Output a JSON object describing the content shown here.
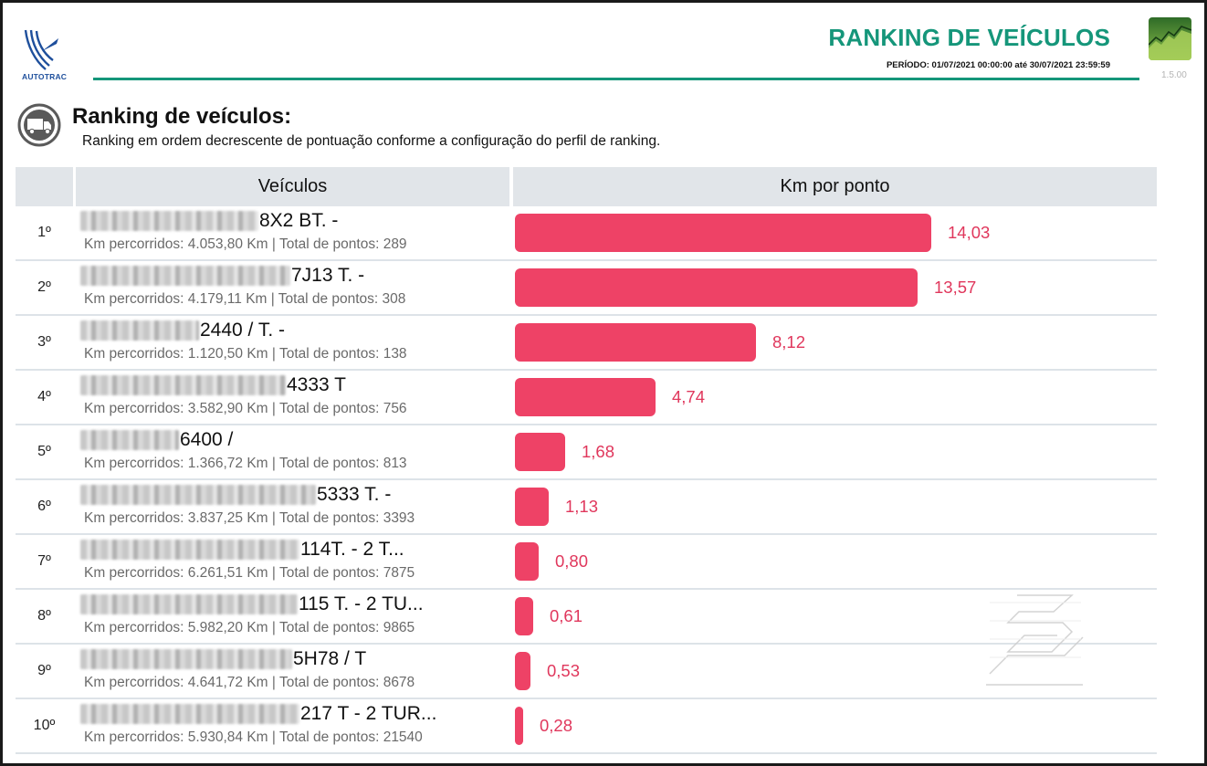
{
  "header": {
    "logo_text": "AUTOTRAC",
    "title": "RANKING DE VEÍCULOS",
    "period": "PERÍODO: 01/07/2021 00:00:00 até 30/07/2021 23:59:59",
    "version": "1.5.00",
    "logo_icon": "autotrac-logo",
    "app_icon": "chart-app-icon",
    "accent_color": "#15967a"
  },
  "section": {
    "icon": "truck-icon",
    "title": "Ranking de veículos:",
    "subtitle": "Ranking em ordem decrescente de pontuação conforme a configuração do perfil de ranking."
  },
  "table": {
    "col_rank": "",
    "col_vehicles": "Veículos",
    "col_km_per_point": "Km por ponto",
    "bar_color": "#ee4266",
    "max_value": 14.03,
    "rows": [
      {
        "rank": "1º",
        "name": "8X2 BT. -",
        "info": "Km percorridos: 4.053,80 Km | Total de pontos: 289",
        "value": 14.03,
        "value_label": "14,03"
      },
      {
        "rank": "2º",
        "name": "7J13 T. -",
        "info": "Km percorridos: 4.179,11 Km | Total de pontos: 308",
        "value": 13.57,
        "value_label": "13,57"
      },
      {
        "rank": "3º",
        "name": "2440 / T. -",
        "info": "Km percorridos: 1.120,50 Km | Total de pontos: 138",
        "value": 8.12,
        "value_label": "8,12"
      },
      {
        "rank": "4º",
        "name": "4333 T",
        "info": "Km percorridos: 3.582,90 Km | Total de pontos: 756",
        "value": 4.74,
        "value_label": "4,74"
      },
      {
        "rank": "5º",
        "name": "6400 /",
        "info": "Km percorridos: 1.366,72 Km | Total de pontos: 813",
        "value": 1.68,
        "value_label": "1,68"
      },
      {
        "rank": "6º",
        "name": "5333 T. -",
        "info": "Km percorridos: 3.837,25 Km | Total de pontos: 3393",
        "value": 1.13,
        "value_label": "1,13"
      },
      {
        "rank": "7º",
        "name": "114T. - 2 T...",
        "info": "Km percorridos: 6.261,51 Km | Total de pontos: 7875",
        "value": 0.8,
        "value_label": "0,80"
      },
      {
        "rank": "8º",
        "name": "115 T. - 2 TU...",
        "info": "Km percorridos: 5.982,20 Km | Total de pontos: 9865",
        "value": 0.61,
        "value_label": "0,61"
      },
      {
        "rank": "9º",
        "name": "5H78 / T",
        "info": "Km percorridos: 4.641,72 Km | Total de pontos: 8678",
        "value": 0.53,
        "value_label": "0,53"
      },
      {
        "rank": "10º",
        "name": "217 T - 2 TUR...",
        "info": "Km percorridos: 5.930,84 Km | Total de pontos: 21540",
        "value": 0.28,
        "value_label": "0,28"
      }
    ]
  }
}
